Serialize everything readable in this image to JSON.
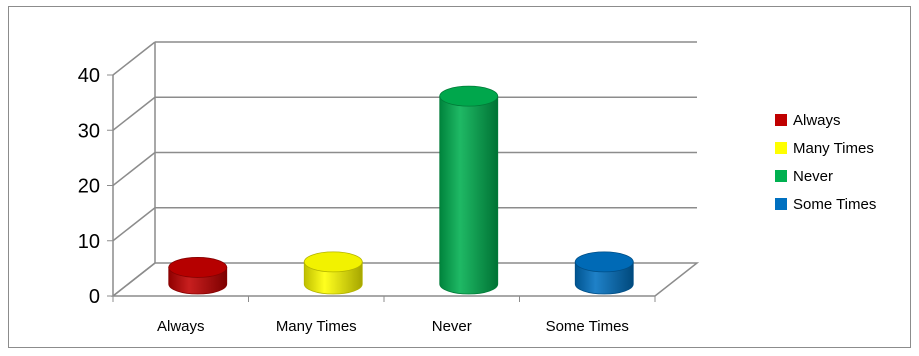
{
  "chart_data": {
    "type": "bar",
    "title": "",
    "xlabel": "",
    "ylabel": "",
    "categories": [
      "Always",
      "Many Times",
      "Never",
      "Some Times"
    ],
    "values": [
      3,
      4,
      34,
      4
    ],
    "ylim": [
      0,
      40
    ],
    "yticks": [
      "0",
      "10",
      "20",
      "30",
      "40"
    ],
    "grid": true,
    "legend_position": "right",
    "series": [
      {
        "name": "Always",
        "color": "#c00000"
      },
      {
        "name": "Many Times",
        "color": "#ffff00"
      },
      {
        "name": "Never",
        "color": "#00b050"
      },
      {
        "name": "Some Times",
        "color": "#0070c0"
      }
    ]
  }
}
